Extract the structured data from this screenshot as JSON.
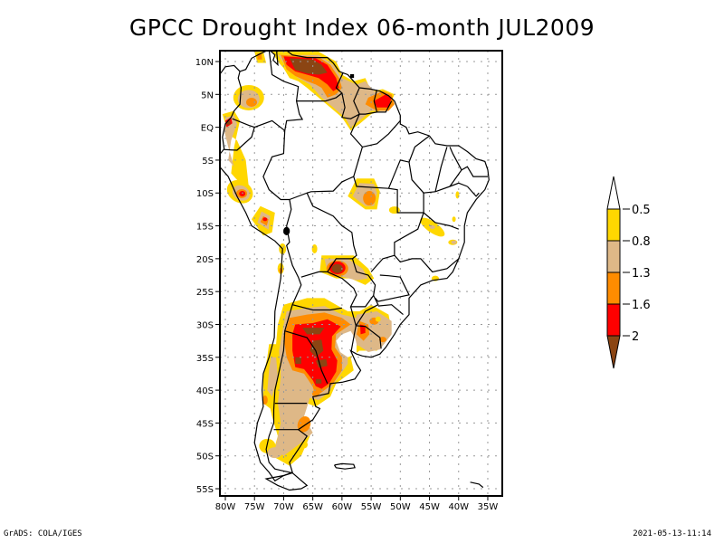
{
  "title": "GPCC Drought Index 06-month JUL2009",
  "footer": {
    "left": "GrADS: COLA/IGES",
    "right": "2021-05-13-11:14"
  },
  "map": {
    "region": "South America",
    "lon_range": [
      -80,
      -33
    ],
    "lat_range": [
      -56,
      12
    ],
    "lat_ticks": [
      {
        "value": 10,
        "label": "10N"
      },
      {
        "value": 5,
        "label": "5N"
      },
      {
        "value": 0,
        "label": "EQ"
      },
      {
        "value": -5,
        "label": "5S"
      },
      {
        "value": -10,
        "label": "10S"
      },
      {
        "value": -15,
        "label": "15S"
      },
      {
        "value": -20,
        "label": "20S"
      },
      {
        "value": -25,
        "label": "25S"
      },
      {
        "value": -30,
        "label": "30S"
      },
      {
        "value": -35,
        "label": "35S"
      },
      {
        "value": -40,
        "label": "40S"
      },
      {
        "value": -45,
        "label": "45S"
      },
      {
        "value": -50,
        "label": "50S"
      },
      {
        "value": -55,
        "label": "55S"
      }
    ],
    "lon_ticks": [
      {
        "value": -80,
        "label": "80W"
      },
      {
        "value": -75,
        "label": "75W"
      },
      {
        "value": -70,
        "label": "70W"
      },
      {
        "value": -65,
        "label": "65W"
      },
      {
        "value": -60,
        "label": "60W"
      },
      {
        "value": -55,
        "label": "55W"
      },
      {
        "value": -50,
        "label": "50W"
      },
      {
        "value": -45,
        "label": "45W"
      },
      {
        "value": -40,
        "label": "40W"
      },
      {
        "value": -35,
        "label": "35W"
      }
    ],
    "grid": true
  },
  "colorbar": {
    "levels": [
      {
        "color": "#ffffff",
        "label": ""
      },
      {
        "color": "#ffd700",
        "label": "-0.5"
      },
      {
        "color": "#deb887",
        "label": "-0.8"
      },
      {
        "color": "#ff8c00",
        "label": "-1.3"
      },
      {
        "color": "#ff0000",
        "label": "-1.6"
      },
      {
        "color": "#8b4513",
        "label": "-2"
      }
    ],
    "orientation": "vertical",
    "placement": "right"
  },
  "drought_regions": [
    {
      "name": "venezuela-llanos",
      "lon": -64,
      "lat": 8.5,
      "max_class": 5
    },
    {
      "name": "guianas",
      "lon": -53,
      "lat": 4,
      "max_class": 4
    },
    {
      "name": "colombia-west",
      "lon": -76,
      "lat": 4.5,
      "max_class": 3
    },
    {
      "name": "ecuador-coast",
      "lon": -79,
      "lat": 1.5,
      "max_class": 5
    },
    {
      "name": "peru-north",
      "lon": -77,
      "lat": -10,
      "max_class": 4
    },
    {
      "name": "peru-south",
      "lon": -73,
      "lat": -13.5,
      "max_class": 4
    },
    {
      "name": "mato-grosso",
      "lon": -56,
      "lat": -11,
      "max_class": 3
    },
    {
      "name": "paraguay-chaco",
      "lon": -60.5,
      "lat": -21.5,
      "max_class": 5
    },
    {
      "name": "central-argentina",
      "lon": -64.5,
      "lat": -35,
      "max_class": 5
    },
    {
      "name": "uruguay-rs",
      "lon": -55,
      "lat": -31,
      "max_class": 4
    },
    {
      "name": "chile-central",
      "lon": -71.5,
      "lat": -37,
      "max_class": 3
    },
    {
      "name": "patagonia",
      "lon": -66,
      "lat": -45.5,
      "max_class": 3
    }
  ]
}
